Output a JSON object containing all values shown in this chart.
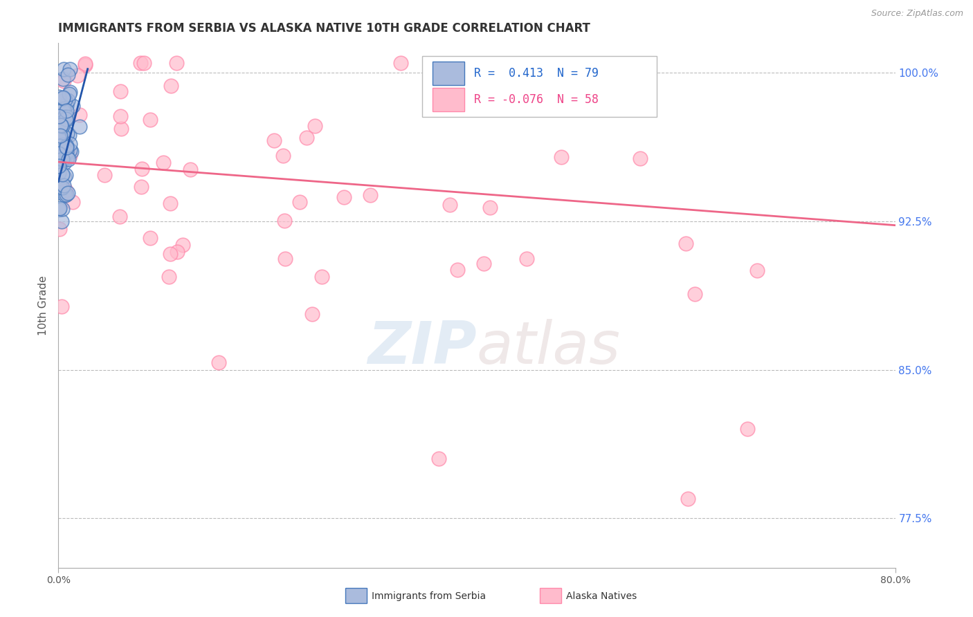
{
  "title": "IMMIGRANTS FROM SERBIA VS ALASKA NATIVE 10TH GRADE CORRELATION CHART",
  "source_text": "Source: ZipAtlas.com",
  "ylabel": "10th Grade",
  "xlim": [
    0.0,
    80.0
  ],
  "ylim": [
    75.0,
    101.5
  ],
  "plot_ylim": [
    75.0,
    101.5
  ],
  "xticklabels_shown": [
    "0.0%",
    "80.0%"
  ],
  "xticklabels_pos": [
    0.0,
    80.0
  ],
  "right_yticks": [
    100.0,
    92.5,
    85.0,
    77.5
  ],
  "right_yticklabels": [
    "100.0%",
    "92.5%",
    "85.0%",
    "77.5%"
  ],
  "grid_yticks": [
    100.0,
    92.5,
    85.0,
    77.5
  ],
  "blue_color": "#AABBDD",
  "pink_color": "#FFBBCC",
  "blue_edge": "#4477BB",
  "pink_edge": "#FF88AA",
  "blue_line_color": "#2255AA",
  "pink_line_color": "#EE6688",
  "legend_R1": "0.413",
  "legend_N1": "79",
  "legend_R2": "-0.076",
  "legend_N2": "58",
  "legend_label1": "Immigrants from Serbia",
  "legend_label2": "Alaska Natives",
  "watermark_zip": "ZIP",
  "watermark_atlas": "atlas",
  "right_ytick_color": "#4477EE",
  "background_color": "#FFFFFF",
  "grid_color": "#BBBBBB",
  "title_color": "#333333",
  "source_color": "#999999",
  "ylabel_color": "#555555"
}
